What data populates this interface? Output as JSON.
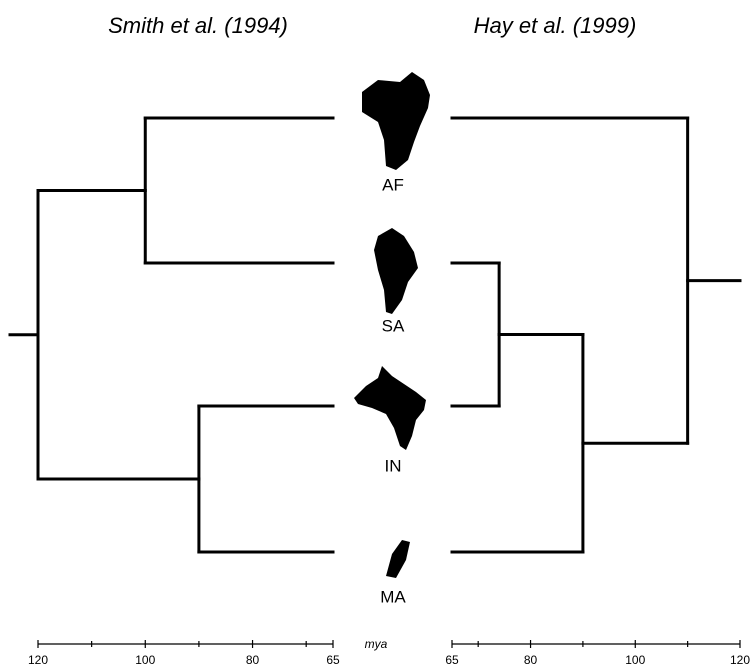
{
  "titles": {
    "left": "Smith et al. (1994)",
    "right": "Hay et al. (1999)"
  },
  "leaves": [
    "AF",
    "SA",
    "IN",
    "MA"
  ],
  "axis_label": "mya",
  "left_tree": {
    "age": 120,
    "children": [
      {
        "age": 100,
        "children": [
          0,
          1
        ]
      },
      {
        "age": 90,
        "children": [
          2,
          3
        ]
      }
    ]
  },
  "right_tree": {
    "age": 110,
    "children": [
      0,
      {
        "age": 90,
        "children": [
          {
            "age": 74,
            "children": [
              1,
              2
            ]
          },
          3
        ]
      }
    ]
  },
  "left_axis": {
    "xlim": [
      120,
      65
    ],
    "ticks": [
      120,
      100,
      80,
      65
    ],
    "minor_ticks": [
      110,
      90,
      70
    ]
  },
  "right_axis": {
    "xlim": [
      65,
      120
    ],
    "ticks": [
      65,
      80,
      100,
      120
    ],
    "minor_ticks": [
      70,
      90,
      110
    ]
  }
}
